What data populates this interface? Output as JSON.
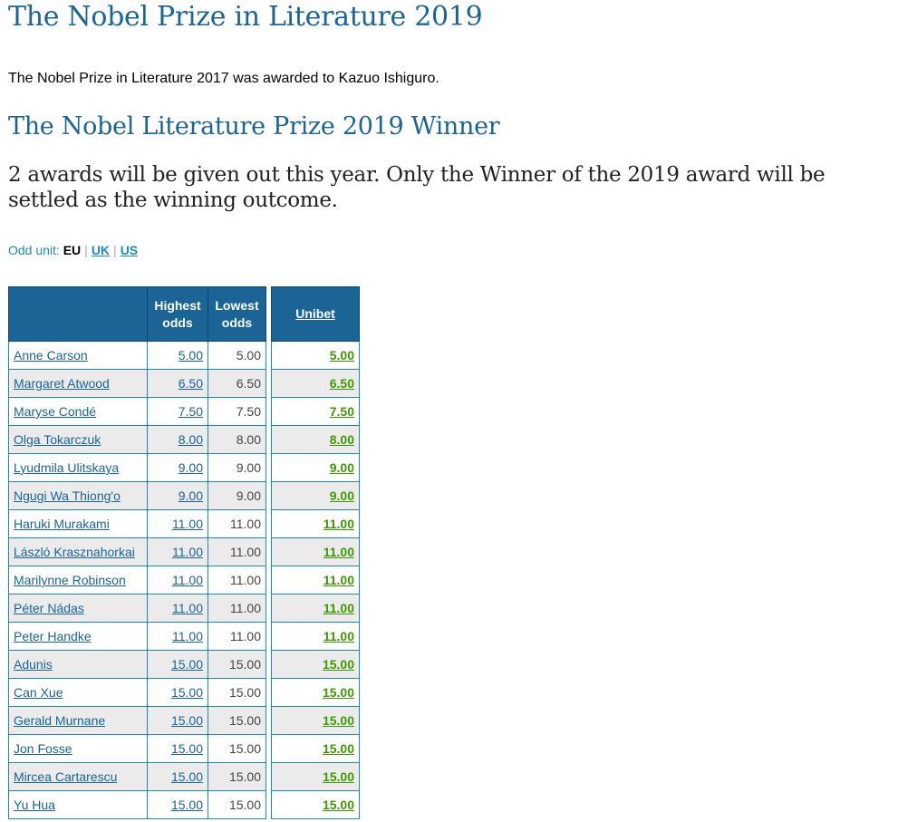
{
  "page": {
    "title": "The Nobel Prize in Literature 2019",
    "intro": "The Nobel Prize in Literature 2017 was awarded to Kazuo Ishiguro.",
    "subtitle": "The Nobel Literature Prize 2019 Winner",
    "description": "2 awards will be given out this year. Only the Winner of the 2019 award will be settled as the winning outcome."
  },
  "odd_unit": {
    "label": "Odd unit:",
    "current": "EU",
    "options": [
      "UK",
      "US"
    ],
    "separator": "|"
  },
  "table": {
    "headers": {
      "highest": "Highest odds",
      "lowest": "Lowest odds",
      "bookmaker": "Unibet"
    },
    "rows": [
      {
        "name": "Anne Carson",
        "highest": "5.00",
        "lowest": "5.00",
        "bookmaker": "5.00"
      },
      {
        "name": "Margaret Atwood",
        "highest": "6.50",
        "lowest": "6.50",
        "bookmaker": "6.50"
      },
      {
        "name": "Maryse Condé",
        "highest": "7.50",
        "lowest": "7.50",
        "bookmaker": "7.50"
      },
      {
        "name": "Olga Tokarczuk",
        "highest": "8.00",
        "lowest": "8.00",
        "bookmaker": "8.00"
      },
      {
        "name": "Lyudmila Ulitskaya",
        "highest": "9.00",
        "lowest": "9.00",
        "bookmaker": "9.00"
      },
      {
        "name": "Ngugi Wa Thiong'o",
        "highest": "9.00",
        "lowest": "9.00",
        "bookmaker": "9.00"
      },
      {
        "name": "Haruki Murakami",
        "highest": "11.00",
        "lowest": "11.00",
        "bookmaker": "11.00"
      },
      {
        "name": "László Krasznahorkai",
        "highest": "11.00",
        "lowest": "11.00",
        "bookmaker": "11.00"
      },
      {
        "name": "Marilynne Robinson",
        "highest": "11.00",
        "lowest": "11.00",
        "bookmaker": "11.00"
      },
      {
        "name": "Péter Nádas",
        "highest": "11.00",
        "lowest": "11.00",
        "bookmaker": "11.00"
      },
      {
        "name": "Peter Handke",
        "highest": "11.00",
        "lowest": "11.00",
        "bookmaker": "11.00"
      },
      {
        "name": "Adunis",
        "highest": "15.00",
        "lowest": "15.00",
        "bookmaker": "15.00"
      },
      {
        "name": "Can Xue",
        "highest": "15.00",
        "lowest": "15.00",
        "bookmaker": "15.00"
      },
      {
        "name": "Gerald Murnane",
        "highest": "15.00",
        "lowest": "15.00",
        "bookmaker": "15.00"
      },
      {
        "name": "Jon Fosse",
        "highest": "15.00",
        "lowest": "15.00",
        "bookmaker": "15.00"
      },
      {
        "name": "Mircea Cartarescu",
        "highest": "15.00",
        "lowest": "15.00",
        "bookmaker": "15.00"
      },
      {
        "name": "Yu Hua",
        "highest": "15.00",
        "lowest": "15.00",
        "bookmaker": "15.00"
      }
    ]
  }
}
